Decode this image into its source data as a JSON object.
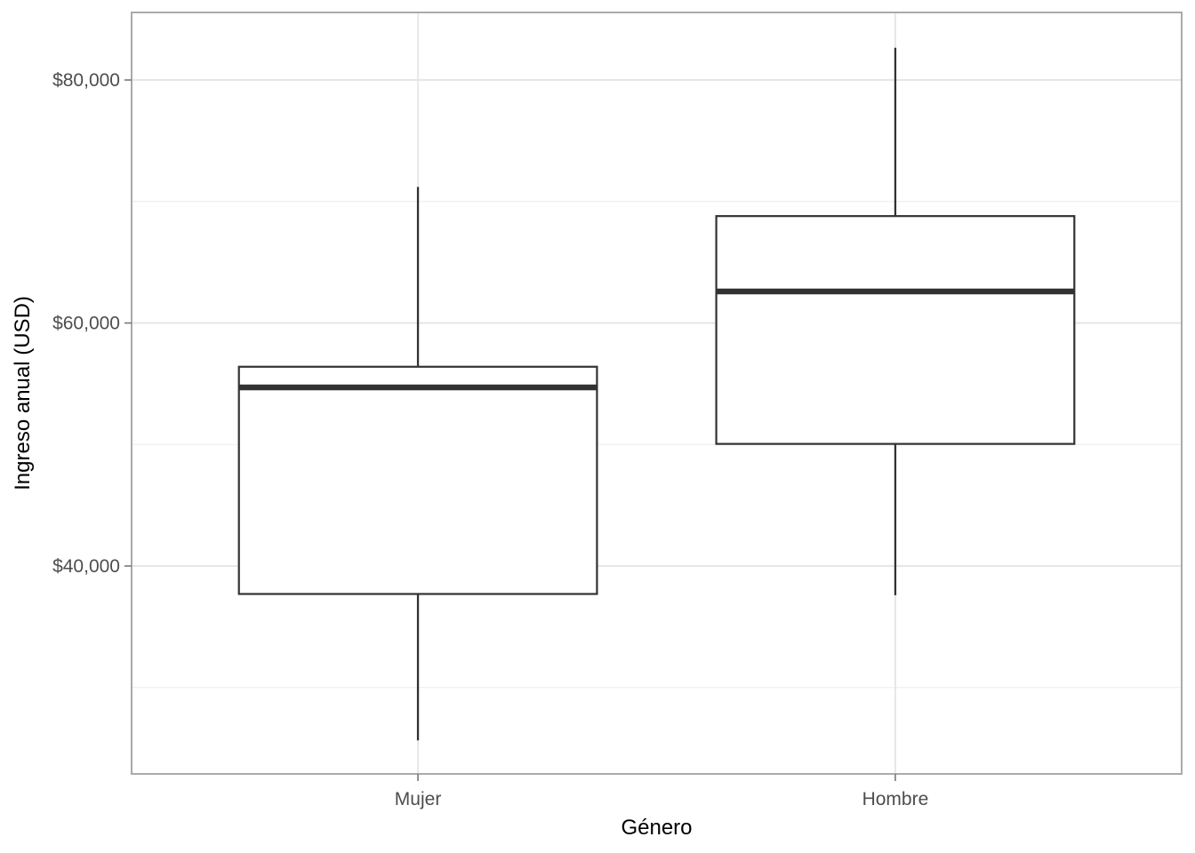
{
  "chart_data": {
    "type": "boxplot",
    "title": "",
    "xlabel": "Género",
    "ylabel": "Ingreso anual (USD)",
    "categories": [
      "Mujer",
      "Hombre"
    ],
    "series": [
      {
        "name": "Mujer",
        "min": 25650,
        "q1": 37700,
        "median": 54700,
        "q3": 56400,
        "max": 71200
      },
      {
        "name": "Hombre",
        "min": 37600,
        "q1": 50050,
        "median": 62600,
        "q3": 68800,
        "max": 82650
      }
    ],
    "y_axis": {
      "range": [
        22890,
        85560
      ],
      "major_ticks": [
        {
          "value": 40000,
          "label": "$40,000"
        },
        {
          "value": 60000,
          "label": "$60,000"
        },
        {
          "value": 80000,
          "label": "$80,000"
        }
      ],
      "minor_ticks": [
        30000,
        50000,
        70000
      ]
    },
    "x_axis": {
      "tick_labels": [
        "Mujer",
        "Hombre"
      ]
    },
    "legend": "none",
    "grid": "horizontal major+minor; vertical major at category centers"
  },
  "style": {
    "background": "#ffffff",
    "panel_fill": "#ffffff",
    "panel_border": "#aaaaaa",
    "grid_major": "#e3e3e3",
    "grid_minor": "#efefef",
    "tick_mark": "#777777",
    "tick_label_color": "#4d4d4d",
    "axis_title_color": "#000000",
    "box_stroke": "#323232",
    "box_fill": "#ffffff"
  }
}
